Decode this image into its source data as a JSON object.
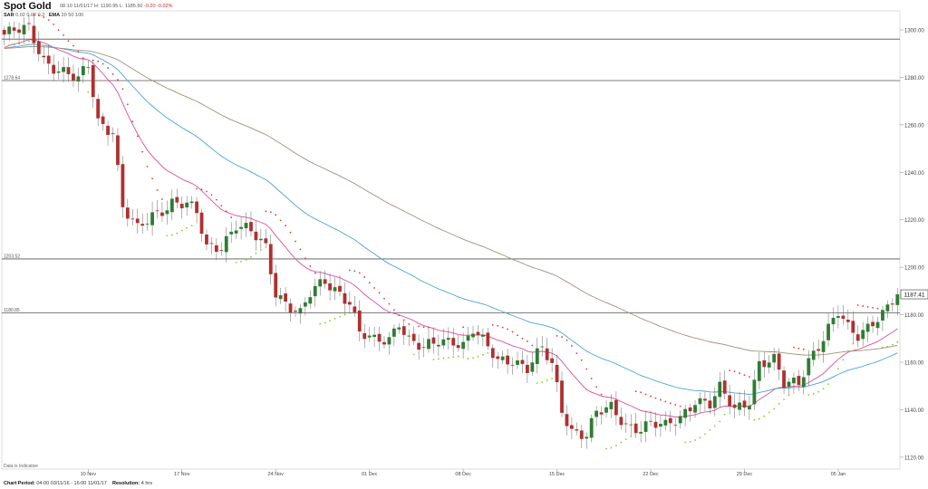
{
  "header": {
    "title": "Spot Gold",
    "quote_date": "08.10 11/01/17",
    "quote_hl": "H: 1190.95  L: 1185.50",
    "quote_change": "-0.20  -0.02%",
    "indicators": [
      {
        "name": "SAR",
        "params": "0.02  0.02  0.2"
      },
      {
        "name": "EMA",
        "params": "20  50  100"
      }
    ]
  },
  "chart_data": {
    "type": "candlestick",
    "ylim": [
      1115,
      1308
    ],
    "y_ticks": [
      1120,
      1140,
      1160,
      1180,
      1200,
      1220,
      1240,
      1260,
      1280,
      1300
    ],
    "y_tick_labels": [
      "1120.00",
      "1140.00",
      "1160.00",
      "1180.00",
      "1200.00",
      "1220.00",
      "1240.00",
      "1260.00",
      "1280.00",
      "1300.00"
    ],
    "x_ticks": [
      {
        "i": 17,
        "label": "10 Nov"
      },
      {
        "i": 36,
        "label": "17 Nov"
      },
      {
        "i": 55,
        "label": "24 Nov"
      },
      {
        "i": 74,
        "label": "01 Dec"
      },
      {
        "i": 93,
        "label": "08 Dec"
      },
      {
        "i": 112,
        "label": "15 Dec"
      },
      {
        "i": 131,
        "label": "22 Dec"
      },
      {
        "i": 150,
        "label": "29 Dec"
      },
      {
        "i": 169,
        "label": "05 Jan"
      }
    ],
    "candle_count": 182,
    "anchors": [
      [
        0,
        1298
      ],
      [
        5,
        1300
      ],
      [
        8,
        1288
      ],
      [
        12,
        1282
      ],
      [
        15,
        1278
      ],
      [
        17,
        1285
      ],
      [
        19,
        1262
      ],
      [
        22,
        1258
      ],
      [
        24,
        1225
      ],
      [
        27,
        1215
      ],
      [
        30,
        1222
      ],
      [
        34,
        1228
      ],
      [
        37,
        1226
      ],
      [
        39,
        1222
      ],
      [
        41,
        1208
      ],
      [
        44,
        1210
      ],
      [
        47,
        1218
      ],
      [
        50,
        1214
      ],
      [
        53,
        1208
      ],
      [
        55,
        1190
      ],
      [
        58,
        1184
      ],
      [
        60,
        1180
      ],
      [
        62,
        1188
      ],
      [
        65,
        1194
      ],
      [
        68,
        1190
      ],
      [
        70,
        1186
      ],
      [
        72,
        1172
      ],
      [
        75,
        1168
      ],
      [
        78,
        1170
      ],
      [
        80,
        1178
      ],
      [
        82,
        1170
      ],
      [
        85,
        1165
      ],
      [
        88,
        1168
      ],
      [
        91,
        1170
      ],
      [
        93,
        1168
      ],
      [
        95,
        1174
      ],
      [
        97,
        1168
      ],
      [
        100,
        1160
      ],
      [
        103,
        1162
      ],
      [
        106,
        1158
      ],
      [
        109,
        1165
      ],
      [
        111,
        1158
      ],
      [
        113,
        1140
      ],
      [
        115,
        1132
      ],
      [
        118,
        1130
      ],
      [
        120,
        1138
      ],
      [
        123,
        1140
      ],
      [
        126,
        1134
      ],
      [
        129,
        1133
      ],
      [
        131,
        1134
      ],
      [
        134,
        1132
      ],
      [
        137,
        1137
      ],
      [
        140,
        1145
      ],
      [
        143,
        1142
      ],
      [
        145,
        1148
      ],
      [
        148,
        1140
      ],
      [
        151,
        1145
      ],
      [
        153,
        1160
      ],
      [
        156,
        1160
      ],
      [
        158,
        1150
      ],
      [
        161,
        1152
      ],
      [
        163,
        1162
      ],
      [
        166,
        1170
      ],
      [
        169,
        1180
      ],
      [
        171,
        1174
      ],
      [
        173,
        1172
      ],
      [
        176,
        1178
      ],
      [
        178,
        1180
      ],
      [
        181,
        1187.4
      ]
    ],
    "horizontal_levels": [
      {
        "value": 1296.1,
        "label": ""
      },
      {
        "value": 1278.64,
        "label": "1278.64"
      },
      {
        "value": 1203.52,
        "label": "1203.52"
      },
      {
        "value": 1180.85,
        "label": "1180.85"
      }
    ],
    "last_price_label": "1187.41",
    "series": [
      {
        "name": "EMA 20",
        "color": "#d94f9b"
      },
      {
        "name": "EMA 50",
        "color": "#4aa3d8"
      },
      {
        "name": "EMA 100",
        "color": "#a39077"
      },
      {
        "name": "SAR",
        "color": "#e53935",
        "color_up": "#7ed321"
      }
    ],
    "up_color": "#2e7d32",
    "down_color": "#b03030"
  },
  "footer": {
    "note": "Data is Indicative",
    "chart_period_label": "Chart Period:",
    "chart_period_value": "04:00 03/11/16 - 16:00 11/01/17",
    "resolution_label": "Resolution:",
    "resolution_value": "4 hrs"
  }
}
